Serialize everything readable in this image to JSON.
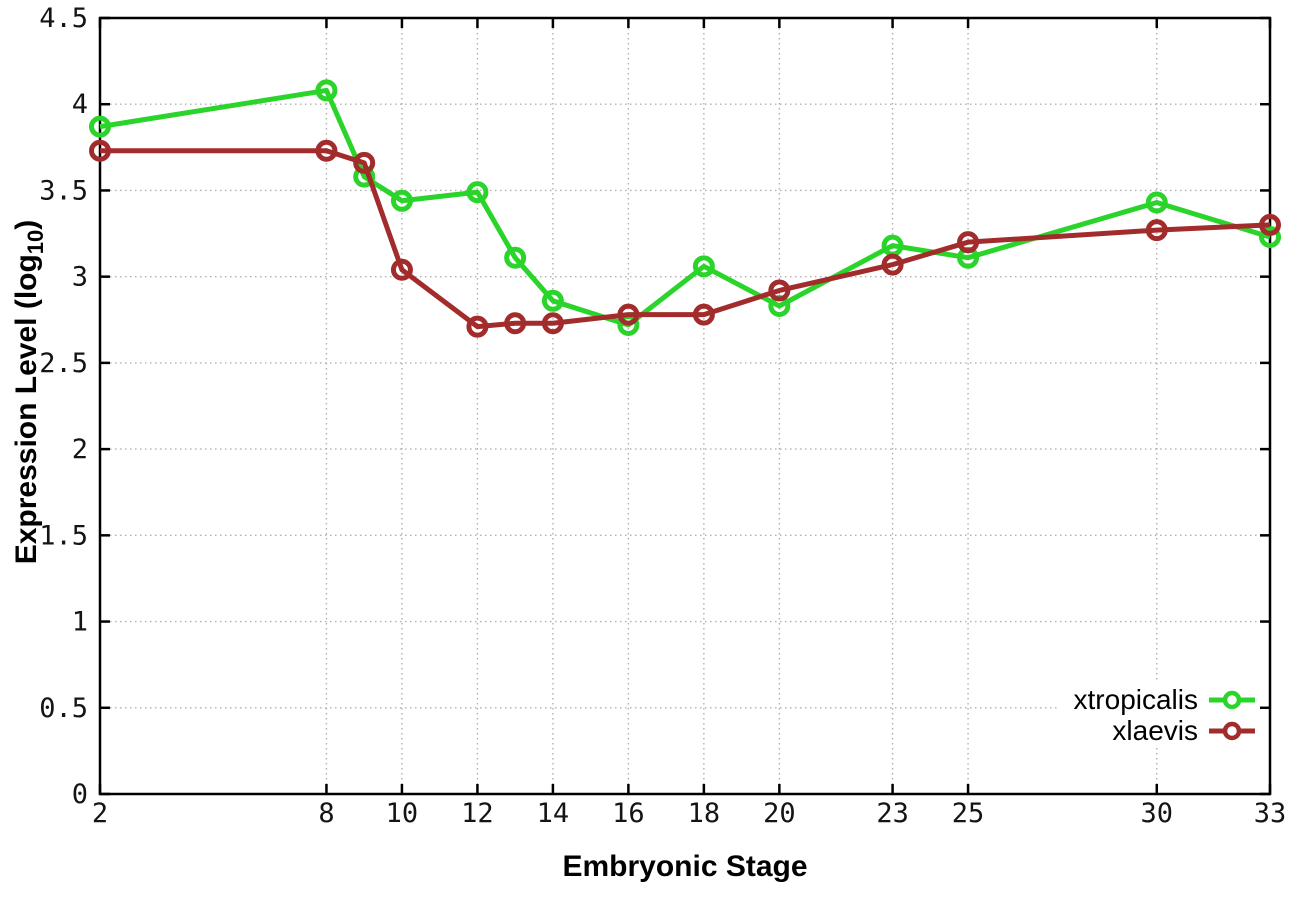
{
  "figure": {
    "x_axis_label": "Embryonic Stage",
    "y_axis_label_prefix": "Expression Level (log",
    "y_axis_label_sub": "10",
    "y_axis_label_suffix": ")",
    "background": "#ffffff",
    "border_color": "#000000",
    "grid_color": "#b0b0b0",
    "tick_label_color": "#141414"
  },
  "chart_data": {
    "type": "line",
    "title": "",
    "xlabel": "Embryonic Stage",
    "ylabel": "Expression Level (log10)",
    "marker": "open-circle",
    "grid": true,
    "legend_position": "bottom-right",
    "xlim": [
      2,
      33
    ],
    "ylim": [
      0,
      4.5
    ],
    "x": [
      2,
      8,
      9,
      10,
      12,
      13,
      14,
      16,
      18,
      20,
      23,
      25,
      30,
      33
    ],
    "series": [
      {
        "name": "xtropicalis",
        "color": "#2ad42a",
        "values": [
          3.87,
          4.08,
          3.58,
          3.44,
          3.49,
          3.11,
          2.86,
          2.72,
          3.06,
          2.83,
          3.18,
          3.11,
          3.43,
          3.23
        ]
      },
      {
        "name": "xlaevis",
        "color": "#a22c2c",
        "values": [
          3.73,
          3.73,
          3.66,
          3.04,
          2.71,
          2.73,
          2.73,
          2.78,
          2.78,
          2.92,
          3.07,
          3.2,
          3.27,
          3.3
        ]
      }
    ],
    "xticks": {
      "values": [
        2,
        8,
        10,
        12,
        14,
        16,
        18,
        20,
        23,
        25,
        30,
        33
      ],
      "labels": [
        "2",
        "8",
        "10",
        "12",
        "14",
        "16",
        "18",
        "20",
        "23",
        "25",
        "30",
        "33"
      ]
    },
    "yticks": {
      "values": [
        0,
        0.5,
        1,
        1.5,
        2,
        2.5,
        3,
        3.5,
        4,
        4.5
      ],
      "labels": [
        "0",
        "0.5",
        "1",
        "1.5",
        "2",
        "2.5",
        "3",
        "3.5",
        "4",
        "4.5"
      ]
    }
  }
}
